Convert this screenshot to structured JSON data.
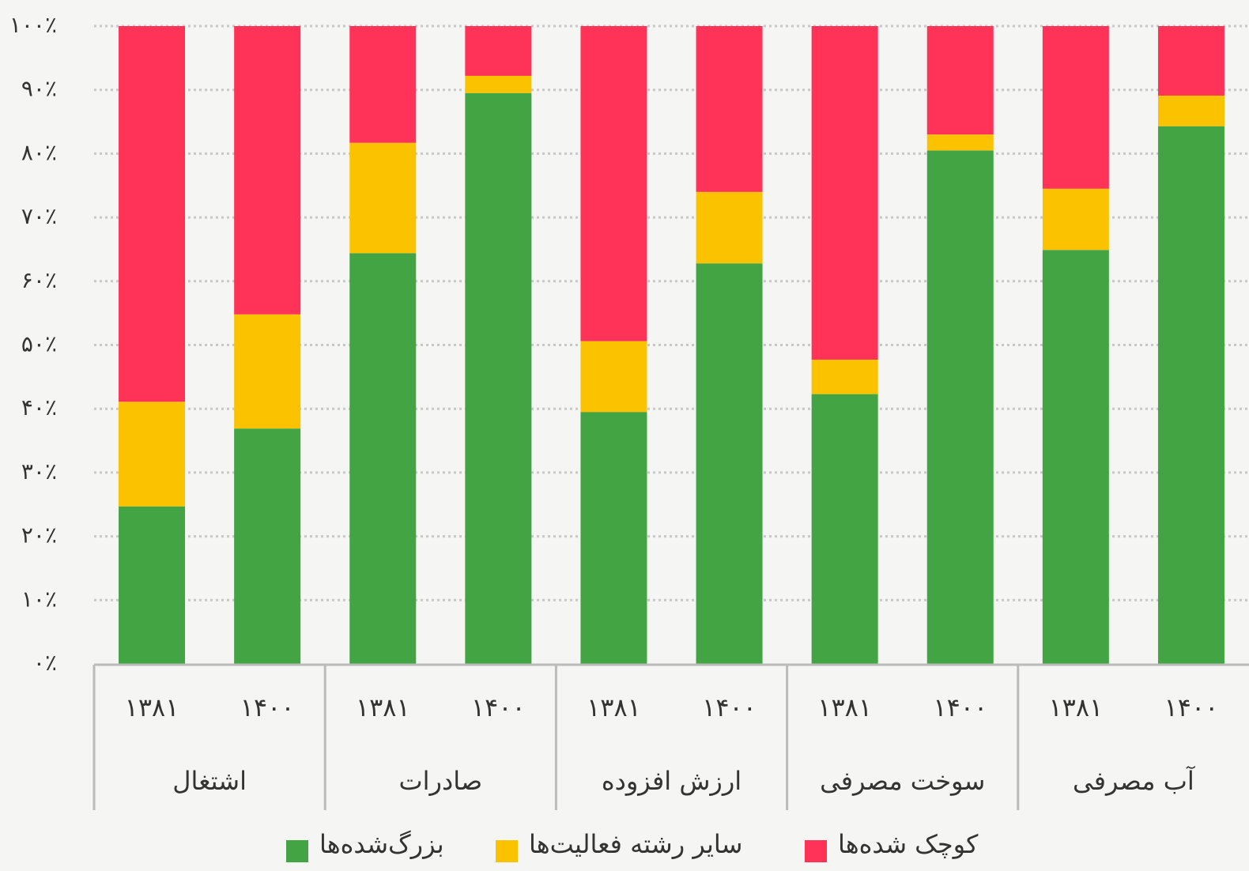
{
  "chart_data": {
    "type": "stacked_bar",
    "categories": [
      "۱۳۸۱",
      "۱۴۰۰",
      "۱۳۸۱",
      "۱۴۰۰",
      "۱۳۸۱",
      "۱۴۰۰",
      "۱۳۸۱",
      "۱۴۰۰",
      "۱۳۸۱",
      "۱۴۰۰"
    ],
    "groups": [
      "اشتغال",
      "صادرات",
      "ارزش افزوده",
      "سوخت مصرفی",
      "آب مصرفی"
    ],
    "series": [
      {
        "name": "بزرگ‌شده‌ها",
        "color": "#43a443",
        "values": [
          24.7,
          36.9,
          64.4,
          89.5,
          39.5,
          62.8,
          42.3,
          80.5,
          64.9,
          84.3
        ]
      },
      {
        "name": "سایر رشته فعالیت‌ها",
        "color": "#fbc200",
        "values": [
          16.4,
          17.9,
          17.3,
          2.7,
          11.1,
          11.2,
          5.4,
          2.5,
          9.6,
          4.8
        ]
      },
      {
        "name": "کوچک شده‌ها",
        "color": "#ff3358",
        "values": [
          58.9,
          45.2,
          18.3,
          7.8,
          49.4,
          26.0,
          52.3,
          17.0,
          25.5,
          10.9
        ]
      }
    ],
    "ylim": [
      0,
      100
    ],
    "yticks": [
      {
        "value": 0,
        "label": "۰٪"
      },
      {
        "value": 10,
        "label": "۱۰٪"
      },
      {
        "value": 20,
        "label": "۲۰٪"
      },
      {
        "value": 30,
        "label": "۳۰٪"
      },
      {
        "value": 40,
        "label": "۴۰٪"
      },
      {
        "value": 50,
        "label": "۵۰٪"
      },
      {
        "value": 60,
        "label": "۶۰٪"
      },
      {
        "value": 70,
        "label": "۷۰٪"
      },
      {
        "value": 80,
        "label": "۸۰٪"
      },
      {
        "value": 90,
        "label": "۹۰٪"
      },
      {
        "value": 100,
        "label": "۱۰۰٪"
      }
    ],
    "grid": true,
    "legend": "bottom"
  }
}
